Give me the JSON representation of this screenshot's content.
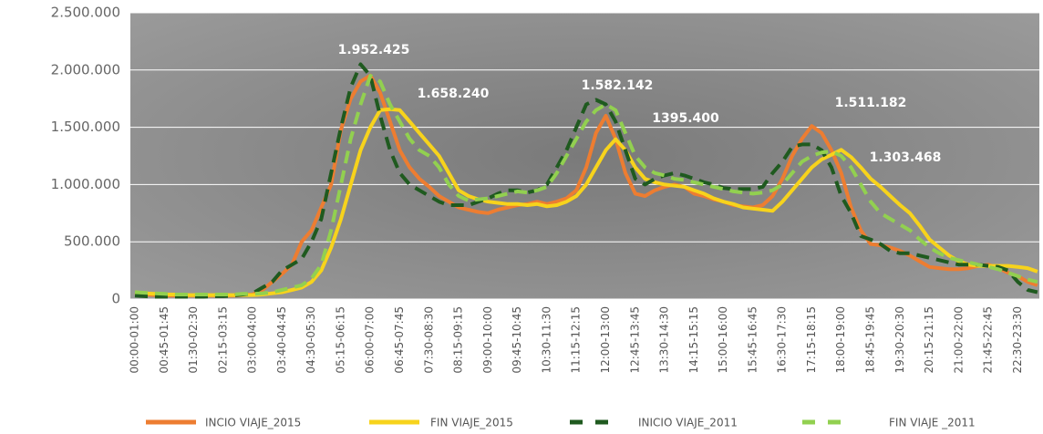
{
  "chart_data": {
    "type": "line",
    "categories": [
      "00:00-01:00",
      null,
      null,
      "00:45-01:45",
      null,
      null,
      "01:30-02:30",
      null,
      null,
      "02:15-03:15",
      null,
      null,
      "03:00-04:00",
      null,
      null,
      "03:40-04:45",
      null,
      null,
      "04:30-05:30",
      null,
      null,
      "05:15-06:15",
      null,
      null,
      "06:00-07:00",
      null,
      null,
      "06:45-07:45",
      null,
      null,
      "07:30-08:30",
      null,
      null,
      "08:15-09:15",
      null,
      null,
      "09:00-10:00",
      null,
      null,
      "09:45-10:45",
      null,
      null,
      "10:30-11:30",
      null,
      null,
      "11:15-12:15",
      null,
      null,
      "12:00-13:00",
      null,
      null,
      "12:45-13:45",
      null,
      null,
      "13:30-14:30",
      null,
      null,
      "14:15-15:15",
      null,
      null,
      "15:00-16:00",
      null,
      null,
      "15:45-16:45",
      null,
      null,
      "16:30-17:30",
      null,
      null,
      "17:15-18:15",
      null,
      null,
      "18:00-19:00",
      null,
      null,
      "18:45-19:45",
      null,
      null,
      "19:30-20:30",
      null,
      null,
      "20:15-21:15",
      null,
      null,
      "21:00-22:00",
      null,
      null,
      "21:45-22:45",
      null,
      null,
      "22:30-23:30",
      null,
      null
    ],
    "series": [
      {
        "name": "INCIO VIAJE_2015",
        "color": "#ed7d31",
        "dashed": false,
        "values": [
          50000,
          40000,
          35000,
          30000,
          30000,
          30000,
          30000,
          30000,
          30000,
          30000,
          30000,
          35000,
          40000,
          80000,
          150000,
          220000,
          300000,
          500000,
          600000,
          800000,
          1000000,
          1480000,
          1750000,
          1900000,
          1952425,
          1800000,
          1550000,
          1300000,
          1150000,
          1050000,
          980000,
          900000,
          850000,
          800000,
          780000,
          760000,
          750000,
          780000,
          800000,
          820000,
          830000,
          850000,
          830000,
          850000,
          880000,
          950000,
          1150000,
          1450000,
          1600000,
          1400000,
          1100000,
          920000,
          900000,
          950000,
          980000,
          1000000,
          980000,
          920000,
          900000,
          870000,
          850000,
          820000,
          810000,
          800000,
          820000,
          900000,
          1050000,
          1250000,
          1400000,
          1511182,
          1450000,
          1300000,
          1100000,
          800000,
          600000,
          480000,
          470000,
          450000,
          420000,
          380000,
          330000,
          280000,
          270000,
          260000,
          260000,
          270000,
          290000,
          300000,
          270000,
          230000,
          200000,
          150000,
          120000
        ]
      },
      {
        "name": "FIN VIAJE_2015",
        "color": "#f7d31c",
        "dashed": false,
        "values": [
          60000,
          50000,
          45000,
          40000,
          40000,
          35000,
          35000,
          35000,
          35000,
          35000,
          35000,
          35000,
          35000,
          40000,
          50000,
          60000,
          80000,
          100000,
          150000,
          250000,
          450000,
          700000,
          1000000,
          1300000,
          1500000,
          1650000,
          1658240,
          1650000,
          1550000,
          1450000,
          1350000,
          1250000,
          1100000,
          950000,
          900000,
          870000,
          850000,
          840000,
          830000,
          830000,
          820000,
          830000,
          810000,
          820000,
          850000,
          900000,
          1000000,
          1150000,
          1300000,
          1395400,
          1300000,
          1150000,
          1050000,
          1020000,
          1000000,
          990000,
          980000,
          950000,
          920000,
          880000,
          850000,
          830000,
          800000,
          790000,
          780000,
          770000,
          850000,
          950000,
          1050000,
          1150000,
          1220000,
          1260000,
          1303468,
          1240000,
          1150000,
          1050000,
          980000,
          900000,
          820000,
          750000,
          640000,
          520000,
          450000,
          380000,
          330000,
          300000,
          290000,
          290000,
          290000,
          290000,
          280000,
          270000,
          240000
        ]
      },
      {
        "name": "INICIO VIAJE_2011",
        "color": "#1f5a1f",
        "dashed": true,
        "values": [
          30000,
          25000,
          20000,
          20000,
          20000,
          20000,
          20000,
          20000,
          25000,
          25000,
          30000,
          40000,
          50000,
          100000,
          150000,
          250000,
          300000,
          350000,
          500000,
          700000,
          1100000,
          1500000,
          1850000,
          2050000,
          1950000,
          1600000,
          1300000,
          1100000,
          1000000,
          950000,
          900000,
          850000,
          820000,
          820000,
          820000,
          850000,
          880000,
          920000,
          950000,
          950000,
          930000,
          950000,
          1000000,
          1150000,
          1300000,
          1500000,
          1700000,
          1740000,
          1700000,
          1550000,
          1300000,
          1050000,
          1000000,
          1050000,
          1080000,
          1100000,
          1080000,
          1050000,
          1020000,
          1000000,
          970000,
          960000,
          960000,
          960000,
          980000,
          1100000,
          1200000,
          1330000,
          1350000,
          1350000,
          1300000,
          1150000,
          900000,
          750000,
          550000,
          520000,
          480000,
          420000,
          400000,
          400000,
          380000,
          360000,
          340000,
          320000,
          300000,
          300000,
          300000,
          290000,
          280000,
          250000,
          150000,
          80000,
          60000
        ]
      },
      {
        "name": "FIN VIAJE _2011",
        "color": "#92d050",
        "dashed": true,
        "values": [
          60000,
          55000,
          50000,
          45000,
          40000,
          40000,
          40000,
          40000,
          40000,
          40000,
          40000,
          45000,
          45000,
          50000,
          60000,
          80000,
          100000,
          120000,
          180000,
          300000,
          600000,
          1000000,
          1400000,
          1700000,
          1950000,
          1900000,
          1700000,
          1550000,
          1400000,
          1300000,
          1250000,
          1150000,
          1000000,
          900000,
          860000,
          870000,
          880000,
          900000,
          920000,
          940000,
          930000,
          950000,
          980000,
          1100000,
          1250000,
          1400000,
          1550000,
          1650000,
          1700000,
          1650000,
          1450000,
          1250000,
          1150000,
          1100000,
          1080000,
          1050000,
          1040000,
          1020000,
          1000000,
          980000,
          960000,
          940000,
          930000,
          920000,
          930000,
          950000,
          1000000,
          1100000,
          1200000,
          1250000,
          1280000,
          1290000,
          1250000,
          1150000,
          1000000,
          850000,
          750000,
          700000,
          650000,
          600000,
          520000,
          450000,
          400000,
          360000,
          340000,
          320000,
          300000,
          280000,
          260000,
          230000,
          200000,
          170000,
          150000
        ]
      }
    ],
    "annotations": [
      "1.952.425",
      "1.658.240",
      "1.582.142",
      "1395.400",
      "1.511.182",
      "1.303.468"
    ],
    "ylim": [
      0,
      2500000
    ],
    "yticks": [
      0,
      {
        "value": 500000,
        "label": "500.000"
      },
      {
        "value": 1000000,
        "label": "1.000.000"
      },
      {
        "value": 1500000,
        "label": "1.500.000"
      },
      {
        "value": 2000000,
        "label": "2.000.000"
      },
      {
        "value": 2500000,
        "label": "2.500.000"
      }
    ],
    "grid": true
  }
}
